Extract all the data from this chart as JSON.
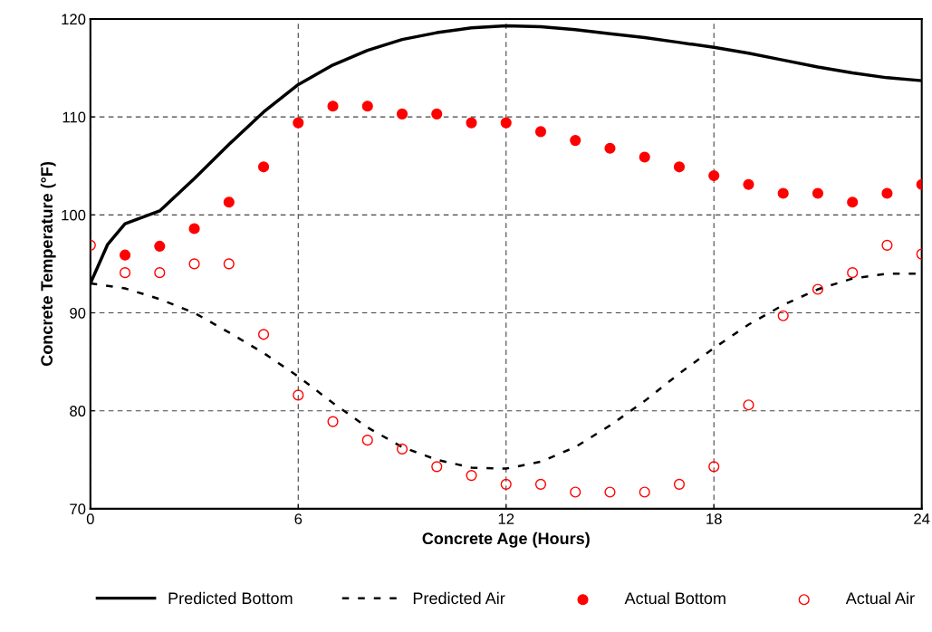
{
  "chart_data": {
    "type": "line",
    "xlabel": "Concrete Age (Hours)",
    "ylabel": "Concrete Temperature (°F)",
    "xlim": [
      0,
      24
    ],
    "xticks": [
      0,
      6,
      12,
      18,
      24
    ],
    "ylim": [
      70,
      120
    ],
    "yticks": [
      70,
      80,
      90,
      100,
      110,
      120
    ],
    "grid": true,
    "legend": "bottom",
    "series": [
      {
        "name": "Predicted Bottom",
        "color": "#000000",
        "line_style": "solid",
        "marker": "none",
        "x": [
          0,
          0.5,
          1,
          2,
          3,
          4,
          5,
          6,
          7,
          8,
          9,
          10,
          11,
          12,
          13,
          14,
          15,
          16,
          17,
          18,
          19,
          20,
          21,
          22,
          23,
          24
        ],
        "values": [
          93,
          97,
          99.1,
          100.4,
          103.7,
          107.2,
          110.5,
          113.3,
          115.3,
          116.8,
          117.9,
          118.6,
          119.1,
          119.3,
          119.2,
          118.9,
          118.5,
          118.1,
          117.6,
          117.1,
          116.5,
          115.8,
          115.1,
          114.5,
          114.0,
          113.7
        ]
      },
      {
        "name": "Predicted Air",
        "color": "#000000",
        "line_style": "dashed",
        "marker": "none",
        "x": [
          0,
          1,
          2,
          3,
          4,
          5,
          6,
          7,
          8,
          9,
          10,
          11,
          12,
          13,
          14,
          15,
          16,
          17,
          18,
          19,
          20,
          21,
          22,
          23,
          24
        ],
        "values": [
          93,
          92.5,
          91.4,
          90,
          88,
          85.9,
          83.5,
          80.8,
          78.3,
          76.3,
          75,
          74.2,
          74.1,
          74.8,
          76.3,
          78.5,
          81,
          83.8,
          86.4,
          88.8,
          90.8,
          92.4,
          93.5,
          94,
          94
        ]
      },
      {
        "name": "Actual Bottom",
        "type": "scatter",
        "color": "#ff0000",
        "marker": "circle",
        "x": [
          1,
          2,
          3,
          4,
          5,
          6,
          7,
          8,
          9,
          10,
          11,
          12,
          13,
          14,
          15,
          16,
          17,
          18,
          19,
          20,
          21,
          22,
          23,
          24
        ],
        "values": [
          95.9,
          96.8,
          98.6,
          101.3,
          104.9,
          109.4,
          111.1,
          111.1,
          110.3,
          110.3,
          109.4,
          109.4,
          108.5,
          107.6,
          106.8,
          105.9,
          104.9,
          104.0,
          103.1,
          102.2,
          102.2,
          101.3,
          102.2,
          103.1
        ]
      },
      {
        "name": "Actual Air",
        "type": "scatter",
        "color": "#ff0000",
        "marker": "circle",
        "x": [
          0,
          1,
          2,
          3,
          4,
          5,
          6,
          7,
          8,
          9,
          10,
          11,
          12,
          13,
          14,
          15,
          16,
          17,
          18,
          19,
          20,
          21,
          22,
          23,
          24
        ],
        "values": [
          96.9,
          94.1,
          94.1,
          95.0,
          95.0,
          87.8,
          81.6,
          78.9,
          77.0,
          76.1,
          74.3,
          73.4,
          72.5,
          72.5,
          71.7,
          71.7,
          71.7,
          72.5,
          74.3,
          80.6,
          89.7,
          92.4,
          94.1,
          96.9,
          96.0
        ]
      }
    ]
  }
}
